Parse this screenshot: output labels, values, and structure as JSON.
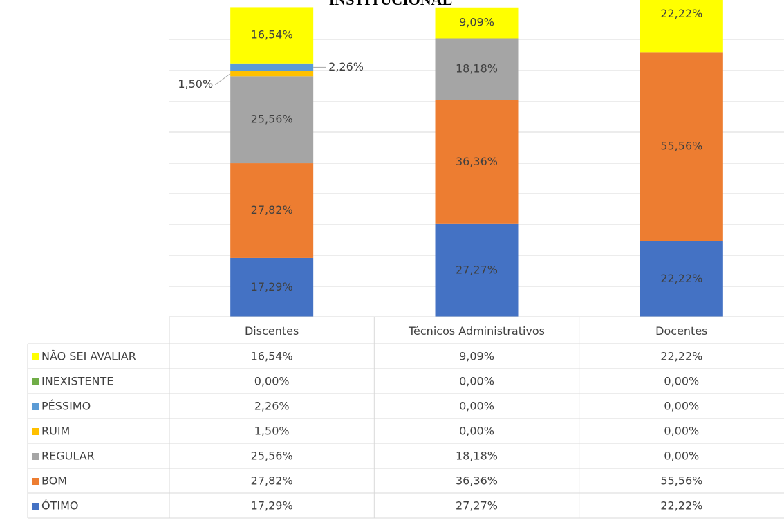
{
  "chart_data": {
    "type": "stacked_bar",
    "title": "INSTITUCIONAL",
    "categories": [
      "Discentes",
      "Técnicos Administrativos",
      "Docentes"
    ],
    "ylim": [
      0,
      100
    ],
    "series": [
      {
        "name": "ÓTIMO",
        "color": "#4472c4",
        "values": [
          17.29,
          27.27,
          22.22
        ],
        "value_labels": [
          "17,29%",
          "27,27%",
          "22,22%"
        ]
      },
      {
        "name": "BOM",
        "color": "#ed7d31",
        "values": [
          27.82,
          36.36,
          55.56
        ],
        "value_labels": [
          "27,82%",
          "36,36%",
          "55,56%"
        ]
      },
      {
        "name": "REGULAR",
        "color": "#a5a5a5",
        "values": [
          25.56,
          18.18,
          0
        ],
        "value_labels": [
          "25,56%",
          "18,18%",
          "0,00%"
        ]
      },
      {
        "name": "RUIM",
        "color": "#ffc000",
        "values": [
          1.5,
          0,
          0
        ],
        "value_labels": [
          "1,50%",
          "0,00%",
          "0,00%"
        ]
      },
      {
        "name": "PÉSSIMO",
        "color": "#5b9bd5",
        "values": [
          2.26,
          0,
          0
        ],
        "value_labels": [
          "2,26%",
          "0,00%",
          "0,00%"
        ]
      },
      {
        "name": "INEXISTENTE",
        "color": "#70ad47",
        "values": [
          0,
          0,
          0
        ],
        "value_labels": [
          "0,00%",
          "0,00%",
          "0,00%"
        ]
      },
      {
        "name": "NÃO SEI AVALIAR",
        "color": "#ffff00",
        "values": [
          16.54,
          9.09,
          22.22
        ],
        "value_labels": [
          "16,54%",
          "9,09%",
          "22,22%"
        ]
      }
    ]
  }
}
